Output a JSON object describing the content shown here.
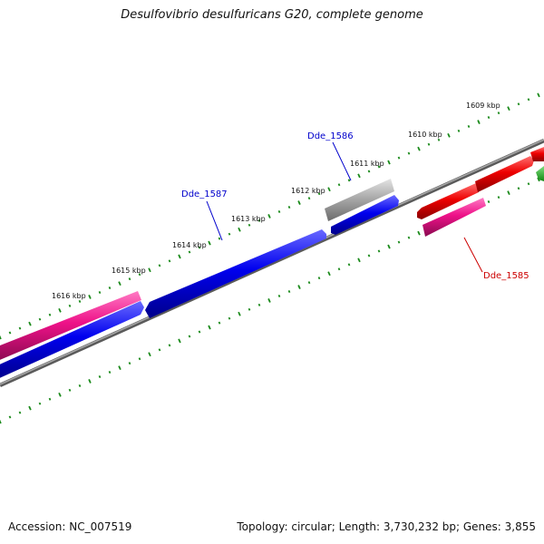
{
  "header": {
    "title": "Desulfovibrio desulfuricans G20, complete genome"
  },
  "footer": {
    "accession": "Accession: NC_007519",
    "summary": "Topology: circular; Length: 3,730,232 bp; Genes: 3,855"
  },
  "map": {
    "kbp_labels": [
      {
        "text": "1609 kbp",
        "kbp": 1609
      },
      {
        "text": "1610 kbp",
        "kbp": 1610
      },
      {
        "text": "1611 kbp",
        "kbp": 1611
      },
      {
        "text": "1612 kbp",
        "kbp": 1612
      },
      {
        "text": "1613 kbp",
        "kbp": 1613
      },
      {
        "text": "1614 kbp",
        "kbp": 1614
      },
      {
        "text": "1615 kbp",
        "kbp": 1615
      },
      {
        "text": "1616 kbp",
        "kbp": 1616
      }
    ],
    "gene_labels": [
      {
        "text": "Dde_1586",
        "color": "#0000cc"
      },
      {
        "text": "Dde_1587",
        "color": "#0000cc"
      },
      {
        "text": "Dde_1585",
        "color": "#cc0000"
      }
    ],
    "colors": {
      "tick": "#1a8a1a",
      "backbone": "#808080",
      "blue_feature": "#0000ee",
      "pink_feature": "#ee1188",
      "red_feature": "#ee0000",
      "grey_feature": "#aaaaaa",
      "green_feature": "#22bb22"
    }
  }
}
